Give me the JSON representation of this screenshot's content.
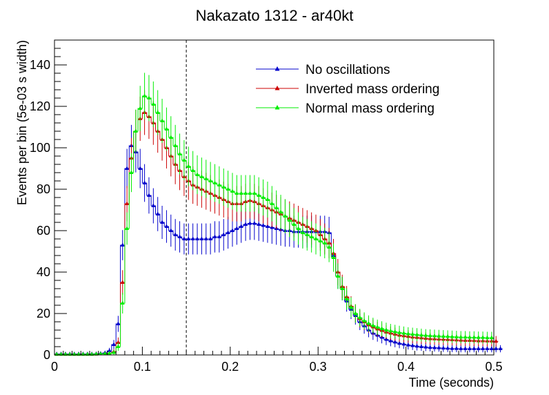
{
  "chart_data": {
    "type": "line",
    "title": "Nakazato 1312 - ar40kt",
    "xlabel": "Time (seconds)",
    "ylabel": "Events per bin (5e-03 s width)",
    "xlim": [
      0,
      0.5
    ],
    "ylim": [
      0,
      152
    ],
    "x_ticks": [
      0,
      0.1,
      0.2,
      0.3,
      0.4,
      0.5
    ],
    "x_tick_labels": [
      "0",
      "0.1",
      "0.2",
      "0.3",
      "0.4",
      "0.5"
    ],
    "y_ticks": [
      0,
      20,
      40,
      60,
      80,
      100,
      120,
      140
    ],
    "y_tick_labels": [
      "0",
      "20",
      "40",
      "60",
      "80",
      "100",
      "120",
      "140"
    ],
    "grid": false,
    "legend_position": "top-right",
    "vline_x": 0.15,
    "bin_width": 0.005,
    "series": [
      {
        "name": "No oscillations",
        "color": "#0000cc",
        "values": [
          0.5,
          0.5,
          0.5,
          0.5,
          0.5,
          0.5,
          0.5,
          0.5,
          0.5,
          0.6,
          0.7,
          1,
          2,
          5,
          15,
          53,
          90,
          101,
          98,
          90,
          83,
          77,
          72,
          68,
          64,
          62,
          60,
          58,
          57,
          56,
          56,
          56,
          56,
          56,
          56,
          56,
          57,
          57,
          58,
          59,
          60,
          61,
          62,
          63,
          63.5,
          63.5,
          63,
          62.5,
          62,
          61.5,
          61,
          60.5,
          60,
          60,
          59.5,
          59.5,
          59.5,
          59.5,
          59.5,
          59.5,
          59.5,
          59.5,
          59,
          48,
          38,
          32,
          26,
          22,
          19,
          16,
          14,
          12,
          10.5,
          9.5,
          8.5,
          7.5,
          6.8,
          6.2,
          5.6,
          5.2,
          4.8,
          4.5,
          4.2,
          4,
          3.8,
          3.6,
          3.5,
          3.4,
          3.3,
          3.2,
          3.1,
          3.1,
          3,
          3,
          3,
          3,
          3,
          3,
          3,
          3,
          3,
          3
        ]
      },
      {
        "name": "Inverted mass ordering",
        "color": "#cc0000",
        "values": [
          0.3,
          0.3,
          0.3,
          0.3,
          0.3,
          0.3,
          0.3,
          0.3,
          0.3,
          0.4,
          0.5,
          0.6,
          0.8,
          1.5,
          6,
          35,
          73,
          95,
          108,
          114,
          117,
          115,
          112,
          108,
          104,
          100,
          96,
          92,
          89,
          86,
          84,
          82,
          81,
          80,
          79,
          78,
          77,
          76,
          75,
          74,
          73,
          73,
          73,
          74,
          74.5,
          74,
          73,
          72,
          71,
          70,
          69,
          68,
          67,
          66,
          65,
          64,
          63,
          62,
          61,
          60,
          58,
          56,
          54,
          49,
          40,
          33,
          28,
          23.5,
          20,
          17.5,
          16,
          14.5,
          13.5,
          12.5,
          11.8,
          11,
          10.5,
          10,
          9.5,
          9.2,
          8.9,
          8.6,
          8.4,
          8.2,
          8,
          7.8,
          7.7,
          7.6,
          7.5,
          7.4,
          7.3,
          7.2,
          7.1,
          7,
          7,
          6.9,
          6.8,
          6.8,
          6.7,
          6.7,
          6.6
        ]
      },
      {
        "name": "Normal mass ordering",
        "color": "#00ee00",
        "values": [
          0.3,
          0.3,
          0.3,
          0.3,
          0.3,
          0.3,
          0.3,
          0.3,
          0.3,
          0.4,
          0.5,
          0.6,
          0.8,
          1.2,
          4,
          25,
          61,
          88,
          108,
          119,
          125,
          124,
          121,
          117,
          113,
          109,
          105,
          101,
          97,
          94,
          91,
          89,
          87,
          86,
          85,
          84,
          83,
          82,
          81,
          80,
          79,
          78,
          78,
          78,
          78,
          78,
          77,
          76,
          75,
          73,
          71,
          69,
          67,
          65,
          63,
          61,
          59,
          58,
          57,
          56,
          55,
          54,
          52,
          47,
          38,
          32,
          27,
          23,
          20,
          18,
          16.5,
          15.2,
          14.2,
          13.4,
          12.7,
          12.1,
          11.6,
          11.2,
          10.8,
          10.5,
          10.2,
          10,
          9.8,
          9.6,
          9.4,
          9.3,
          9.2,
          9.1,
          9,
          8.9,
          8.8,
          8.7,
          8.6,
          8.6,
          8.5,
          8.5,
          8.4,
          8.4,
          8.3,
          8.3
        ]
      }
    ]
  }
}
